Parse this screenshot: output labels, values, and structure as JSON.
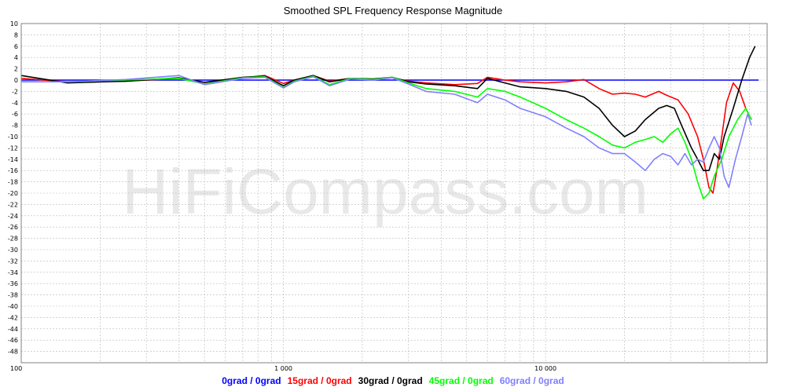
{
  "chart_data": {
    "type": "line",
    "title": "Smoothed SPL Frequency Response Magnitude",
    "watermark": "HiFiCompass.com",
    "xscale": "log",
    "xlim": [
      100,
      70000
    ],
    "ylim": [
      -50,
      10
    ],
    "x_tick_labels": [
      {
        "value": 100,
        "label": "100"
      },
      {
        "value": 1000,
        "label": "1 000"
      },
      {
        "value": 10000,
        "label": "10 000"
      }
    ],
    "y_ticks": [
      10,
      8,
      6,
      4,
      2,
      0,
      -2,
      -4,
      -6,
      -8,
      -10,
      -12,
      -14,
      -16,
      -18,
      -20,
      -22,
      -24,
      -26,
      -28,
      -30,
      -32,
      -34,
      -36,
      -38,
      -40,
      -42,
      -44,
      -46,
      -48
    ],
    "grid": true,
    "legend_position": "bottom",
    "series": [
      {
        "name": "0grad / 0grad",
        "color": "#0000ff",
        "points": [
          [
            100,
            0
          ],
          [
            65000,
            0
          ]
        ]
      },
      {
        "name": "15grad / 0grad",
        "color": "#ff0000",
        "points": [
          [
            100,
            0.3
          ],
          [
            150,
            -0.3
          ],
          [
            250,
            -0.2
          ],
          [
            400,
            0.3
          ],
          [
            500,
            -0.4
          ],
          [
            700,
            0.4
          ],
          [
            850,
            0.8
          ],
          [
            1000,
            -0.6
          ],
          [
            1100,
            0
          ],
          [
            1300,
            0.8
          ],
          [
            1500,
            -0.2
          ],
          [
            1800,
            0.3
          ],
          [
            2200,
            0.1
          ],
          [
            2600,
            0.4
          ],
          [
            3000,
            -0.2
          ],
          [
            3500,
            -0.5
          ],
          [
            4500,
            -0.8
          ],
          [
            5500,
            -0.6
          ],
          [
            6000,
            0.5
          ],
          [
            7000,
            0
          ],
          [
            8000,
            -0.3
          ],
          [
            10000,
            -0.5
          ],
          [
            12000,
            -0.3
          ],
          [
            14000,
            0.1
          ],
          [
            16000,
            -1.5
          ],
          [
            18000,
            -2.5
          ],
          [
            20000,
            -2.3
          ],
          [
            22000,
            -2.5
          ],
          [
            24000,
            -3
          ],
          [
            27000,
            -2
          ],
          [
            29000,
            -2.7
          ],
          [
            32000,
            -3.5
          ],
          [
            35000,
            -6
          ],
          [
            38000,
            -10
          ],
          [
            40000,
            -14
          ],
          [
            42000,
            -19
          ],
          [
            43500,
            -20
          ],
          [
            45000,
            -16
          ],
          [
            47000,
            -10
          ],
          [
            49000,
            -4
          ],
          [
            52000,
            -0.5
          ],
          [
            55000,
            -2
          ],
          [
            58000,
            -5
          ],
          [
            61000,
            -7
          ]
        ]
      },
      {
        "name": "30grad / 0grad",
        "color": "#000000",
        "points": [
          [
            100,
            0.8
          ],
          [
            150,
            -0.5
          ],
          [
            250,
            -0.2
          ],
          [
            400,
            0.4
          ],
          [
            500,
            -0.4
          ],
          [
            700,
            0.5
          ],
          [
            850,
            0.7
          ],
          [
            1000,
            -1
          ],
          [
            1100,
            0
          ],
          [
            1300,
            0.8
          ],
          [
            1500,
            -0.3
          ],
          [
            1800,
            0.3
          ],
          [
            2200,
            0.2
          ],
          [
            2600,
            0.5
          ],
          [
            3000,
            -0.3
          ],
          [
            3500,
            -0.7
          ],
          [
            4500,
            -1
          ],
          [
            5500,
            -1.5
          ],
          [
            6000,
            0.3
          ],
          [
            7000,
            -0.5
          ],
          [
            8000,
            -1.2
          ],
          [
            10000,
            -1.5
          ],
          [
            12000,
            -2
          ],
          [
            14000,
            -3
          ],
          [
            16000,
            -5
          ],
          [
            18000,
            -8
          ],
          [
            20000,
            -10
          ],
          [
            22000,
            -9
          ],
          [
            24000,
            -7
          ],
          [
            27000,
            -5
          ],
          [
            29000,
            -4.5
          ],
          [
            31000,
            -5
          ],
          [
            33000,
            -8
          ],
          [
            36000,
            -12
          ],
          [
            38000,
            -14
          ],
          [
            40000,
            -16
          ],
          [
            42000,
            -16
          ],
          [
            44000,
            -13
          ],
          [
            46000,
            -14
          ],
          [
            48000,
            -10
          ],
          [
            52000,
            -5
          ],
          [
            56000,
            0
          ],
          [
            60000,
            4
          ],
          [
            63000,
            6
          ]
        ]
      },
      {
        "name": "45grad / 0grad",
        "color": "#00ff00",
        "points": [
          [
            100,
            -0.3
          ],
          [
            150,
            -0.3
          ],
          [
            250,
            0
          ],
          [
            400,
            0.3
          ],
          [
            500,
            -0.7
          ],
          [
            700,
            0.4
          ],
          [
            850,
            0.6
          ],
          [
            1000,
            -1.3
          ],
          [
            1100,
            -0.2
          ],
          [
            1300,
            0.7
          ],
          [
            1500,
            -0.8
          ],
          [
            1800,
            0.3
          ],
          [
            2200,
            0.1
          ],
          [
            2600,
            0.5
          ],
          [
            3000,
            -0.5
          ],
          [
            3500,
            -1.5
          ],
          [
            4500,
            -2
          ],
          [
            5500,
            -3
          ],
          [
            6000,
            -1.5
          ],
          [
            7000,
            -2
          ],
          [
            8000,
            -3
          ],
          [
            10000,
            -5
          ],
          [
            12000,
            -7
          ],
          [
            14000,
            -8.5
          ],
          [
            16000,
            -10
          ],
          [
            18000,
            -11.5
          ],
          [
            20000,
            -12
          ],
          [
            22000,
            -11
          ],
          [
            24000,
            -10.5
          ],
          [
            26000,
            -10
          ],
          [
            28000,
            -11
          ],
          [
            30000,
            -9.5
          ],
          [
            32000,
            -8.5
          ],
          [
            34000,
            -11
          ],
          [
            36000,
            -14
          ],
          [
            38000,
            -18
          ],
          [
            40000,
            -21
          ],
          [
            42000,
            -20
          ],
          [
            44000,
            -17
          ],
          [
            47000,
            -14
          ],
          [
            50000,
            -10
          ],
          [
            54000,
            -7
          ],
          [
            58000,
            -5
          ],
          [
            61000,
            -7
          ]
        ]
      },
      {
        "name": "60grad / 0grad",
        "color": "#8080ff",
        "points": [
          [
            100,
            -0.3
          ],
          [
            150,
            -0.3
          ],
          [
            250,
            0.1
          ],
          [
            400,
            0.8
          ],
          [
            500,
            -0.8
          ],
          [
            700,
            0.3
          ],
          [
            850,
            0.5
          ],
          [
            1000,
            -1.4
          ],
          [
            1100,
            -0.3
          ],
          [
            1300,
            0.6
          ],
          [
            1500,
            -1
          ],
          [
            1800,
            0.2
          ],
          [
            2200,
            0
          ],
          [
            2600,
            0.4
          ],
          [
            3000,
            -0.7
          ],
          [
            3500,
            -2
          ],
          [
            4500,
            -2.5
          ],
          [
            5500,
            -4
          ],
          [
            6000,
            -2.5
          ],
          [
            7000,
            -3.5
          ],
          [
            8000,
            -5
          ],
          [
            10000,
            -6.5
          ],
          [
            12000,
            -8.5
          ],
          [
            14000,
            -10
          ],
          [
            16000,
            -12
          ],
          [
            18000,
            -13
          ],
          [
            20000,
            -13
          ],
          [
            22000,
            -14.5
          ],
          [
            24000,
            -16
          ],
          [
            26000,
            -14
          ],
          [
            28000,
            -13
          ],
          [
            30000,
            -13.5
          ],
          [
            32000,
            -15
          ],
          [
            34000,
            -13
          ],
          [
            36000,
            -15
          ],
          [
            38000,
            -14
          ],
          [
            40000,
            -14.5
          ],
          [
            42000,
            -12
          ],
          [
            44000,
            -10
          ],
          [
            46000,
            -12
          ],
          [
            48000,
            -17
          ],
          [
            50000,
            -19
          ],
          [
            53000,
            -14
          ],
          [
            56000,
            -10
          ],
          [
            59000,
            -6
          ],
          [
            61000,
            -8
          ]
        ]
      }
    ]
  }
}
